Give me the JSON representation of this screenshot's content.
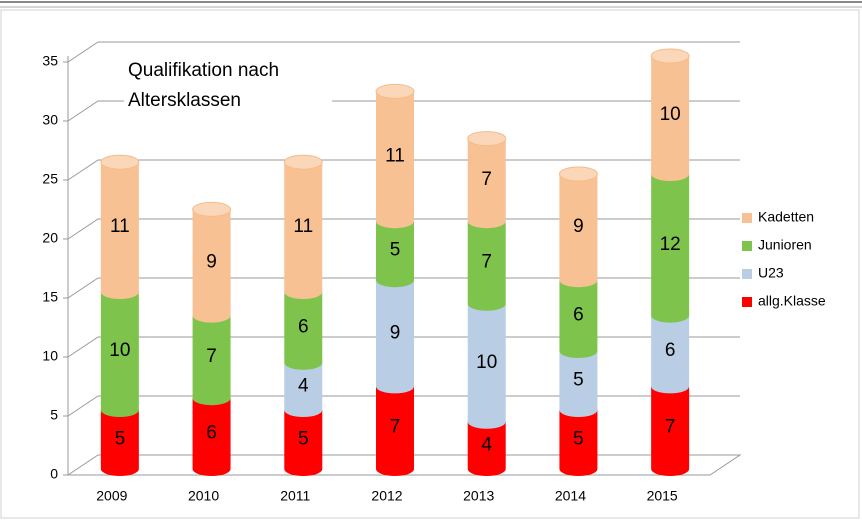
{
  "chart_data": {
    "type": "bar",
    "stacked": true,
    "title": "Qualifikation nach Altersklassen",
    "categories": [
      "2009",
      "2010",
      "2011",
      "2012",
      "2013",
      "2014",
      "2015"
    ],
    "series": [
      {
        "name": "allg.Klasse",
        "color": "#ff0000",
        "values": [
          5,
          6,
          5,
          7,
          4,
          5,
          7
        ]
      },
      {
        "name": "U23",
        "color": "#b9cde5",
        "values": [
          null,
          null,
          4,
          9,
          10,
          5,
          6
        ]
      },
      {
        "name": "Junioren",
        "color": "#7ec44c",
        "values": [
          10,
          7,
          6,
          5,
          7,
          6,
          12
        ]
      },
      {
        "name": "Kadetten",
        "color": "#f8c193",
        "values": [
          11,
          9,
          11,
          11,
          7,
          9,
          10
        ]
      }
    ],
    "ylim": [
      0,
      35
    ],
    "yticks": [
      0,
      5,
      10,
      15,
      20,
      25,
      30,
      35
    ],
    "grid": true,
    "legend": "right"
  }
}
